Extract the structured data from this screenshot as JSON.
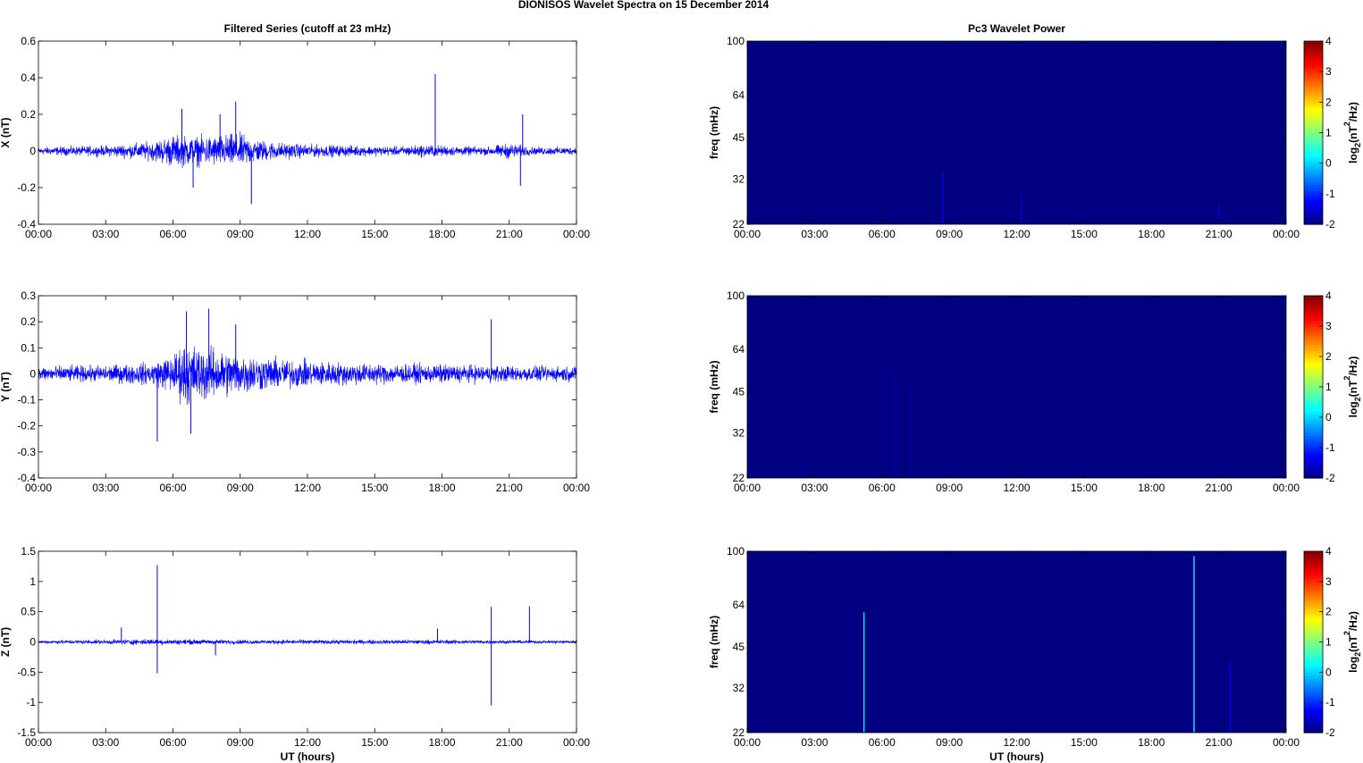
{
  "figure_title": "DIONISOS Wavelet Spectra on 15 December  2014",
  "left_column_title": "Filtered Series (cutoff at 23 mHz)",
  "right_column_title": "Pc3 Wavelet Power",
  "colors": {
    "trace": "#0000ff",
    "background": "#00008f",
    "axes": "#000000"
  },
  "chart_data": [
    {
      "type": "line",
      "panel": "series-x",
      "title": "Filtered Series (cutoff at 23 mHz)",
      "xlabel": "",
      "ylabel": "X (nT)",
      "xlim": [
        0,
        24
      ],
      "ylim": [
        -0.4,
        0.6
      ],
      "xticks": [
        "00:00",
        "03:00",
        "06:00",
        "09:00",
        "12:00",
        "15:00",
        "18:00",
        "21:00",
        "00:00"
      ],
      "yticks": [
        -0.4,
        -0.2,
        0,
        0.2,
        0.4,
        0.6
      ],
      "ytick_labels": [
        "-0.4",
        "-0.2",
        "0",
        "0.2",
        "0.4",
        "0.6"
      ],
      "envelope": {
        "x": [
          0,
          3,
          5,
          6,
          7,
          8,
          9,
          10,
          11,
          12,
          14,
          16,
          17.5,
          18,
          20,
          21,
          22,
          24
        ],
        "amp": [
          0.03,
          0.04,
          0.07,
          0.12,
          0.11,
          0.12,
          0.13,
          0.08,
          0.06,
          0.05,
          0.04,
          0.035,
          0.05,
          0.04,
          0.03,
          0.06,
          0.03,
          0.03
        ]
      },
      "spikes": [
        {
          "x": 9.5,
          "y": -0.29
        },
        {
          "x": 8.8,
          "y": 0.27
        },
        {
          "x": 6.4,
          "y": 0.23
        },
        {
          "x": 8.1,
          "y": 0.2
        },
        {
          "x": 17.7,
          "y": 0.42
        },
        {
          "x": 21.6,
          "y": 0.2
        },
        {
          "x": 21.5,
          "y": -0.19
        },
        {
          "x": 6.9,
          "y": -0.2
        }
      ]
    },
    {
      "type": "line",
      "panel": "series-y",
      "xlabel": "",
      "ylabel": "Y (nT)",
      "xlim": [
        0,
        24
      ],
      "ylim": [
        -0.4,
        0.3
      ],
      "xticks": [
        "00:00",
        "03:00",
        "06:00",
        "09:00",
        "12:00",
        "15:00",
        "18:00",
        "21:00",
        "00:00"
      ],
      "yticks": [
        -0.4,
        -0.3,
        -0.2,
        -0.1,
        0,
        0.1,
        0.2,
        0.3
      ],
      "ytick_labels": [
        "-0.4",
        "-0.3",
        "-0.2",
        "-0.1",
        "0",
        "0.1",
        "0.2",
        "0.3"
      ],
      "envelope": {
        "x": [
          0,
          3,
          5,
          6,
          6.5,
          7,
          8,
          9,
          10,
          11,
          12,
          13,
          15,
          17,
          18,
          20,
          22,
          24
        ],
        "amp": [
          0.04,
          0.045,
          0.06,
          0.1,
          0.17,
          0.15,
          0.13,
          0.11,
          0.09,
          0.08,
          0.07,
          0.065,
          0.055,
          0.05,
          0.05,
          0.045,
          0.04,
          0.04
        ]
      },
      "spikes": [
        {
          "x": 5.3,
          "y": -0.26
        },
        {
          "x": 6.6,
          "y": 0.24
        },
        {
          "x": 7.6,
          "y": 0.25
        },
        {
          "x": 6.8,
          "y": -0.23
        },
        {
          "x": 20.2,
          "y": 0.21
        },
        {
          "x": 8.8,
          "y": 0.19
        }
      ]
    },
    {
      "type": "line",
      "panel": "series-z",
      "xlabel": "UT (hours)",
      "ylabel": "Z (nT)",
      "xlim": [
        0,
        24
      ],
      "ylim": [
        -1.5,
        1.5
      ],
      "xticks": [
        "00:00",
        "03:00",
        "06:00",
        "09:00",
        "12:00",
        "15:00",
        "18:00",
        "21:00",
        "00:00"
      ],
      "yticks": [
        -1.5,
        -1,
        -0.5,
        0,
        0.5,
        1,
        1.5
      ],
      "ytick_labels": [
        "-1.5",
        "-1",
        "-0.5",
        "0",
        "0.5",
        "1",
        "1.5"
      ],
      "envelope": {
        "x": [
          0,
          3,
          5,
          6,
          9,
          12,
          15,
          18,
          21,
          24
        ],
        "amp": [
          0.04,
          0.05,
          0.07,
          0.06,
          0.05,
          0.05,
          0.05,
          0.05,
          0.04,
          0.04
        ]
      },
      "spikes": [
        {
          "x": 5.3,
          "y": 1.27
        },
        {
          "x": 5.3,
          "y": -0.52
        },
        {
          "x": 20.2,
          "y": 0.58
        },
        {
          "x": 20.2,
          "y": -1.05
        },
        {
          "x": 21.9,
          "y": 0.59
        },
        {
          "x": 3.7,
          "y": 0.24
        },
        {
          "x": 17.8,
          "y": 0.22
        },
        {
          "x": 7.9,
          "y": -0.22
        }
      ]
    },
    {
      "type": "heatmap",
      "panel": "power-x",
      "title": "Pc3 Wavelet Power",
      "xlabel": "",
      "ylabel": "freq (mHz)",
      "xlim": [
        0,
        24
      ],
      "ylim": [
        22,
        100
      ],
      "yscale": "log",
      "xticks": [
        "00:00",
        "03:00",
        "06:00",
        "09:00",
        "12:00",
        "15:00",
        "18:00",
        "21:00",
        "00:00"
      ],
      "yticks": [
        22,
        32,
        45,
        64,
        100
      ],
      "colorbar": {
        "min": -2,
        "max": 4,
        "ticks": [
          -2,
          -1,
          0,
          1,
          2,
          3,
          4
        ],
        "label": "log2(nT2/Hz)",
        "label_main": "log",
        "label_sub": "2",
        "label_rest": "(nT",
        "label_sup": "2",
        "label_end": "/Hz)"
      },
      "background_level": -2,
      "streaks": [
        {
          "x": 8.7,
          "f_top": 34,
          "level": -1.3
        },
        {
          "x": 12.2,
          "f_top": 29,
          "level": -1.5
        },
        {
          "x": 21.0,
          "f_top": 26,
          "level": -1.4
        }
      ]
    },
    {
      "type": "heatmap",
      "panel": "power-y",
      "xlabel": "",
      "ylabel": "freq (mHz)",
      "xlim": [
        0,
        24
      ],
      "ylim": [
        22,
        100
      ],
      "yscale": "log",
      "xticks": [
        "00:00",
        "03:00",
        "06:00",
        "09:00",
        "12:00",
        "15:00",
        "18:00",
        "21:00",
        "00:00"
      ],
      "yticks": [
        22,
        32,
        45,
        64,
        100
      ],
      "colorbar": {
        "min": -2,
        "max": 4,
        "ticks": [
          -2,
          -1,
          0,
          1,
          2,
          3,
          4
        ],
        "label": "log2(nT2/Hz)",
        "label_main": "log",
        "label_sub": "2",
        "label_rest": "(nT",
        "label_sup": "2",
        "label_end": "/Hz)"
      },
      "background_level": -2,
      "streaks": [
        {
          "x": 6.6,
          "f_top": 54,
          "level": -1.7
        },
        {
          "x": 7.3,
          "f_top": 48,
          "level": -1.75
        }
      ]
    },
    {
      "type": "heatmap",
      "panel": "power-z",
      "xlabel": "UT (hours)",
      "ylabel": "freq (mHz)",
      "xlim": [
        0,
        24
      ],
      "ylim": [
        22,
        100
      ],
      "yscale": "log",
      "xticks": [
        "00:00",
        "03:00",
        "06:00",
        "09:00",
        "12:00",
        "15:00",
        "18:00",
        "21:00",
        "00:00"
      ],
      "yticks": [
        22,
        32,
        45,
        64,
        100
      ],
      "colorbar": {
        "min": -2,
        "max": 4,
        "ticks": [
          -2,
          -1,
          0,
          1,
          2,
          3,
          4
        ],
        "label": "log2(nT2/Hz)",
        "label_main": "log",
        "label_sub": "2",
        "label_rest": "(nT",
        "label_sup": "2",
        "label_end": "/Hz)"
      },
      "background_level": -2,
      "streaks": [
        {
          "x": 5.2,
          "f_top": 60,
          "level": 0.2
        },
        {
          "x": 19.9,
          "f_top": 96,
          "level": 0.2
        },
        {
          "x": 21.5,
          "f_top": 40,
          "level": -1.3
        }
      ]
    }
  ]
}
